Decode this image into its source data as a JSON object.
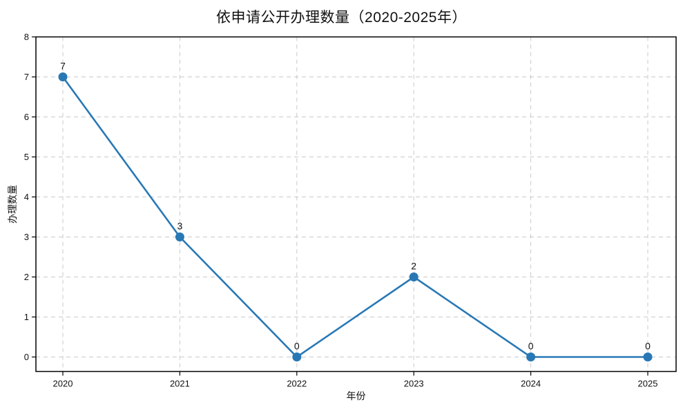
{
  "chart_data": {
    "type": "line",
    "title": "依申请公开办理数量（2020-2025年）",
    "xlabel": "年份",
    "ylabel": "办理数量",
    "categories": [
      "2020",
      "2021",
      "2022",
      "2023",
      "2024",
      "2025"
    ],
    "values": [
      7,
      3,
      0,
      2,
      0,
      0
    ],
    "point_labels": [
      "7",
      "3",
      "0",
      "2",
      "0",
      "0"
    ],
    "yticks": [
      0,
      1,
      2,
      3,
      4,
      5,
      6,
      7,
      8
    ],
    "ylim": [
      0,
      8
    ],
    "grid": "dashed, both axes",
    "legend": "none",
    "line_color": "#2878b5",
    "marker_color": "#2878b5",
    "grid_color": "#c9c9c9",
    "spine_color": "#000000",
    "text_color": "#111111"
  }
}
